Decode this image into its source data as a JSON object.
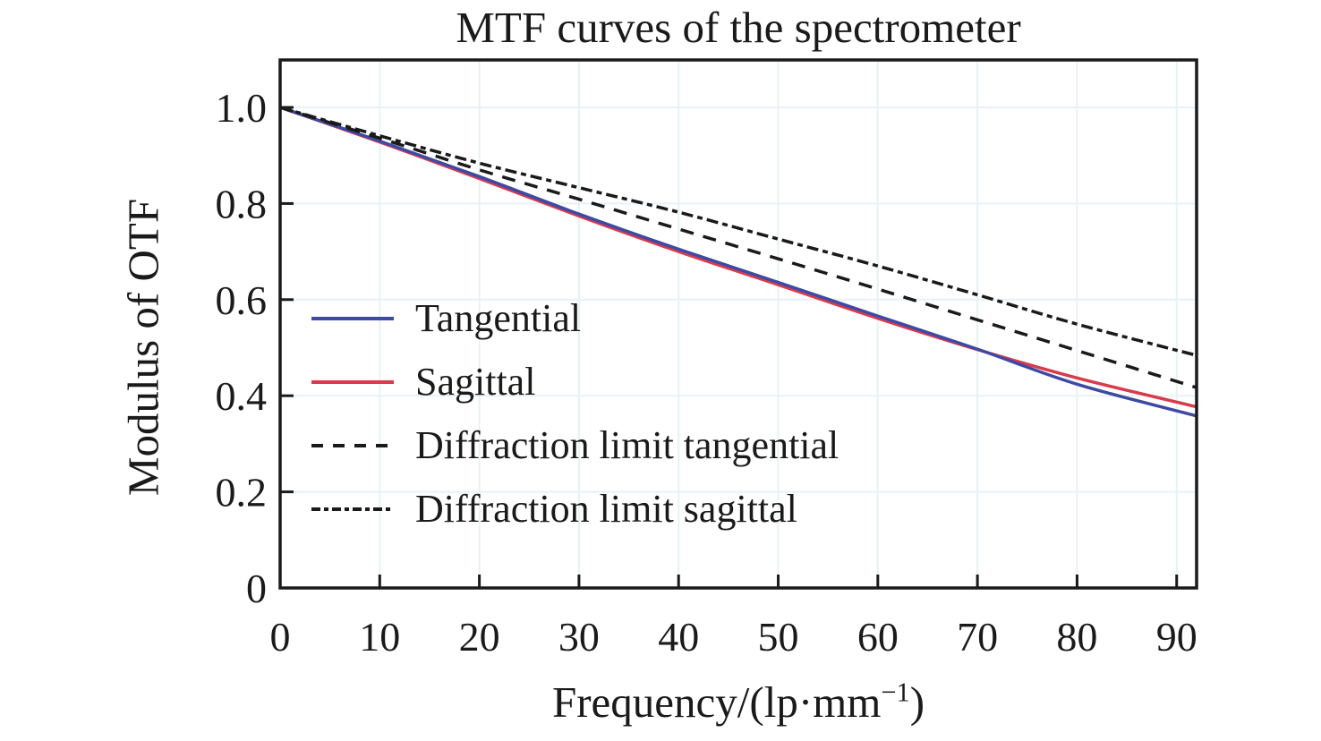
{
  "title": "MTF curves of the spectrometer",
  "x_axis": {
    "label_main": "Frequency/(lp·mm",
    "label_sup": "−1",
    "label_close": ")",
    "tick_values": [
      0,
      10,
      20,
      30,
      40,
      50,
      60,
      70,
      80,
      90
    ],
    "tick_labels": [
      "0",
      "10",
      "20",
      "30",
      "40",
      "50",
      "60",
      "70",
      "80",
      "90"
    ]
  },
  "y_axis": {
    "label": "Modulus of OTF",
    "tick_values": [
      0,
      0.2,
      0.4,
      0.6,
      0.8,
      1.0
    ],
    "tick_labels": [
      "0",
      "0.2",
      "0.4",
      "0.6",
      "0.8",
      "1.0"
    ]
  },
  "colors": {
    "frame": "#1a1a1a",
    "text": "#1a1a1a",
    "grid": "#e9f1f5",
    "tangential_blue": "#3d4aa4",
    "sagittal_red": "#d93a4c",
    "diffraction_black": "#1a1a1a"
  },
  "chart_data": {
    "type": "line",
    "title": "MTF curves of the spectrometer",
    "xlabel": "Frequency/(lp·mm⁻¹)",
    "ylabel": "Modulus of OTF",
    "xlim": [
      0,
      92
    ],
    "ylim": [
      0,
      1.1
    ],
    "grid": "faint major gridlines",
    "legend_position": "inside center-left, no border",
    "x": [
      0,
      10,
      20,
      30,
      40,
      50,
      60,
      70,
      80,
      92
    ],
    "series": [
      {
        "name": "Tangential",
        "style": "solid",
        "color": "#3d4aa4",
        "values": [
          1.0,
          0.93,
          0.856,
          0.778,
          0.705,
          0.636,
          0.566,
          0.497,
          0.424,
          0.358
        ]
      },
      {
        "name": "Sagittal",
        "style": "solid",
        "color": "#d93a4c",
        "values": [
          1.0,
          0.928,
          0.852,
          0.774,
          0.7,
          0.631,
          0.561,
          0.496,
          0.437,
          0.377
        ]
      },
      {
        "name": "Diffraction limit tangential",
        "style": "dashed",
        "color": "#1a1a1a",
        "values": [
          1.0,
          0.936,
          0.87,
          0.809,
          0.747,
          0.685,
          0.622,
          0.558,
          0.494,
          0.417
        ]
      },
      {
        "name": "Diffraction limit sagittal",
        "style": "dashdot",
        "color": "#1a1a1a",
        "values": [
          1.0,
          0.941,
          0.884,
          0.833,
          0.782,
          0.726,
          0.67,
          0.61,
          0.549,
          0.484
        ]
      }
    ]
  }
}
